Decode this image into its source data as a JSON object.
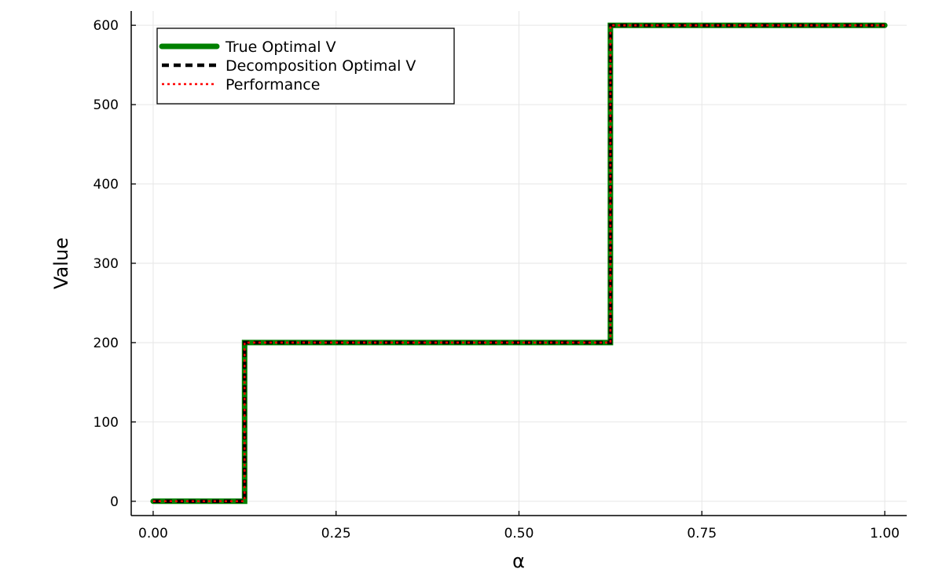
{
  "chart_data": {
    "type": "line",
    "title": "",
    "xlabel": "α",
    "ylabel": "Value",
    "xlim": [
      -0.03,
      1.03
    ],
    "ylim": [
      -18,
      618
    ],
    "grid": true,
    "legend_position": "top-left",
    "x_ticks": [
      0.0,
      0.25,
      0.5,
      0.75,
      1.0
    ],
    "x_tick_labels": [
      "0.00",
      "0.25",
      "0.50",
      "0.75",
      "1.00"
    ],
    "y_ticks": [
      0,
      100,
      200,
      300,
      400,
      500,
      600
    ],
    "y_tick_labels": [
      "0",
      "100",
      "200",
      "300",
      "400",
      "500",
      "600"
    ],
    "series": [
      {
        "name": "True Optimal V",
        "color": "#008000",
        "style": "solid",
        "x": [
          0.0,
          0.125,
          0.125,
          0.625,
          0.625,
          1.0
        ],
        "y": [
          0,
          0,
          200,
          200,
          600,
          600
        ]
      },
      {
        "name": "Decomposition Optimal V",
        "color": "#000000",
        "style": "dashed",
        "x": [
          0.0,
          0.125,
          0.125,
          0.625,
          0.625,
          1.0
        ],
        "y": [
          0,
          0,
          200,
          200,
          600,
          600
        ]
      },
      {
        "name": "Performance",
        "color": "#ff0000",
        "style": "dotted",
        "x": [
          0.0,
          0.125,
          0.125,
          0.625,
          0.625,
          1.0
        ],
        "y": [
          0,
          0,
          200,
          200,
          600,
          600
        ]
      }
    ]
  }
}
